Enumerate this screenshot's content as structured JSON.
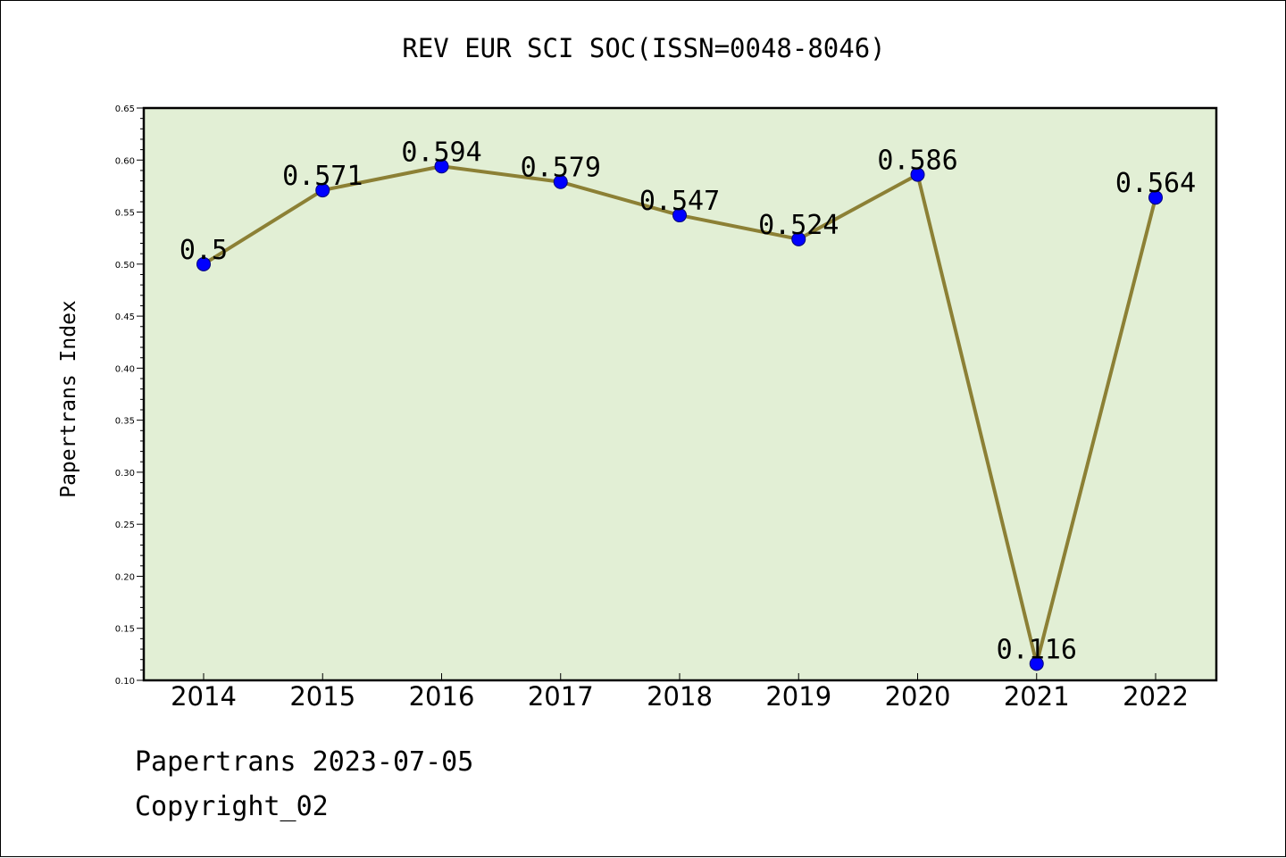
{
  "chart_data": {
    "type": "line",
    "title": "REV EUR SCI SOC(ISSN=0048-8046)",
    "xlabel": "",
    "ylabel": "Papertrans Index",
    "categories": [
      "2014",
      "2015",
      "2016",
      "2017",
      "2018",
      "2019",
      "2020",
      "2021",
      "2022"
    ],
    "series": [
      {
        "values": [
          0.5,
          0.571,
          0.594,
          0.579,
          0.547,
          0.524,
          0.586,
          0.116,
          0.564
        ],
        "labels": [
          "0.5",
          "0.571",
          "0.594",
          "0.579",
          "0.547",
          "0.524",
          "0.586",
          "0.116",
          "0.564"
        ]
      }
    ],
    "ylim": [
      0.1,
      0.65
    ],
    "yticks": [
      "0.10",
      "0.15",
      "0.20",
      "0.25",
      "0.30",
      "0.35",
      "0.40",
      "0.45",
      "0.50",
      "0.55",
      "0.60",
      "0.65"
    ],
    "grid": false,
    "legend": "none",
    "colors": {
      "plot_background": "#e2efd5",
      "line": "#8c8035",
      "marker": "#0000ff",
      "marker_edge": "#00007a",
      "axes": "#000000"
    }
  },
  "footer": {
    "date_line": "Papertrans 2023-07-05",
    "copyright": "Copyright_02"
  }
}
